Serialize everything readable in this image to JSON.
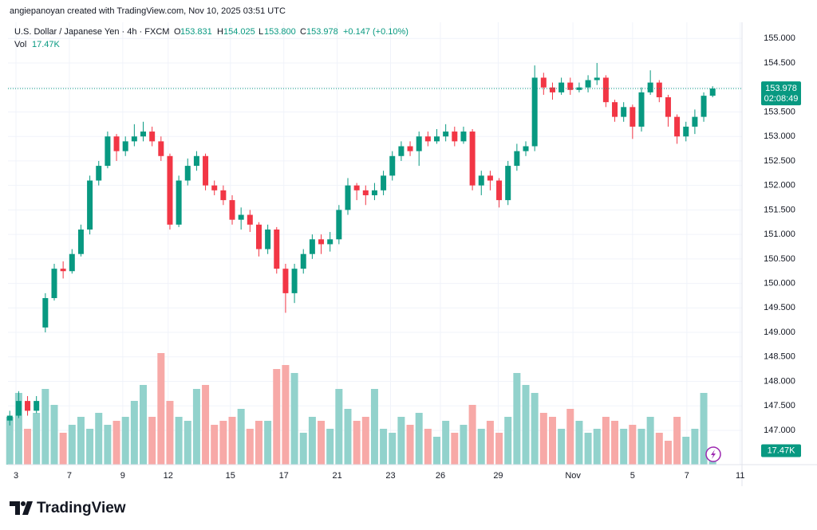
{
  "header": {
    "credit": "angiepanoyan created with TradingView.com, Nov 10, 2025 03:51 UTC"
  },
  "legend": {
    "symbol": "U.S. Dollar / Japanese Yen · 4h · FXCM",
    "o_key": "O",
    "o": "153.831",
    "h_key": "H",
    "h": "154.025",
    "l_key": "L",
    "l": "153.800",
    "c_key": "C",
    "c": "153.978",
    "change": "+0.147 (+0.10%)",
    "vol_key": "Vol",
    "vol": "17.47K"
  },
  "markers": {
    "last_price": "153.978",
    "countdown": "02:08:49",
    "last_volume": "17.47K"
  },
  "footer": {
    "brand": "TradingView"
  },
  "chart_data": {
    "type": "candlestick",
    "up_color": "#089981",
    "down_color": "#f23645",
    "up_volume_color": "#92d2cc",
    "down_volume_color": "#f7a9a7",
    "grid": true,
    "xlim": [
      -0.2,
      82.3
    ],
    "xticks": [
      {
        "value": 0.7,
        "label": "3"
      },
      {
        "value": 6.7,
        "label": "7"
      },
      {
        "value": 12.7,
        "label": "9"
      },
      {
        "value": 17.8,
        "label": "12"
      },
      {
        "value": 24.8,
        "label": "15"
      },
      {
        "value": 30.8,
        "label": "17"
      },
      {
        "value": 36.8,
        "label": "21"
      },
      {
        "value": 42.8,
        "label": "23"
      },
      {
        "value": 48.4,
        "label": "26"
      },
      {
        "value": 54.9,
        "label": "29"
      },
      {
        "value": 63.3,
        "label": "Nov"
      },
      {
        "value": 70,
        "label": "5"
      },
      {
        "value": 76.1,
        "label": "7"
      },
      {
        "value": 82.1,
        "label": "11"
      }
    ],
    "ylim": [
      146.3,
      155.33
    ],
    "yticks": [
      {
        "value": 147,
        "label": "147.000"
      },
      {
        "value": 147.5,
        "label": "147.500"
      },
      {
        "value": 148,
        "label": "148.000"
      },
      {
        "value": 148.5,
        "label": "148.500"
      },
      {
        "value": 149,
        "label": "149.000"
      },
      {
        "value": 149.5,
        "label": "149.500"
      },
      {
        "value": 150,
        "label": "150.000"
      },
      {
        "value": 150.5,
        "label": "150.500"
      },
      {
        "value": 151,
        "label": "151.000"
      },
      {
        "value": 151.5,
        "label": "151.500"
      },
      {
        "value": 152,
        "label": "152.000"
      },
      {
        "value": 152.5,
        "label": "152.500"
      },
      {
        "value": 153,
        "label": "153.000"
      },
      {
        "value": 153.5,
        "label": "153.500"
      },
      {
        "value": 154,
        "label": "154.000"
      },
      {
        "value": 154.5,
        "label": "154.500"
      },
      {
        "value": 155,
        "label": "155.000"
      }
    ],
    "volume_ylim": [
      0,
      150
    ],
    "open": [
      147.2,
      147.3,
      147.6,
      147.4,
      149.1,
      149.7,
      150.3,
      150.25,
      150.6,
      151.1,
      152.1,
      152.4,
      153,
      152.7,
      152.9,
      153,
      153.1,
      152.9,
      152.6,
      151.2,
      152.1,
      152.4,
      152.6,
      152,
      151.9,
      151.7,
      151.3,
      151.4,
      151.2,
      150.7,
      151.1,
      150.3,
      149.8,
      150.3,
      150.6,
      150.9,
      150.8,
      150.9,
      151.5,
      152,
      151.9,
      151.8,
      151.9,
      152.2,
      152.6,
      152.8,
      152.7,
      153,
      152.9,
      153,
      153.1,
      152.9,
      153.1,
      152,
      152.2,
      152.1,
      151.7,
      152.4,
      152.7,
      152.8,
      154.2,
      154,
      153.9,
      154.1,
      153.95,
      154,
      154.15,
      154.2,
      153.7,
      153.4,
      153.6,
      153.2,
      153.9,
      154.1,
      153.8,
      153.4,
      153,
      153.2,
      153.4,
      153.831
    ],
    "high": [
      147.4,
      147.8,
      147.7,
      147.7,
      149.8,
      150.4,
      150.45,
      150.7,
      151.2,
      152.2,
      152.5,
      153.1,
      153.05,
      153,
      153.25,
      153.3,
      153.2,
      153,
      152.65,
      152.2,
      152.55,
      152.7,
      152.65,
      152.1,
      152,
      151.8,
      151.55,
      151.5,
      151.25,
      151.2,
      151.15,
      150.4,
      150.4,
      150.7,
      151,
      151,
      151.05,
      151.6,
      152.15,
      152.05,
      152,
      152.05,
      152.3,
      152.7,
      152.9,
      152.9,
      153.1,
      153.1,
      153.15,
      153.25,
      153.2,
      153.2,
      153.15,
      152.3,
      152.3,
      152.15,
      152.5,
      152.85,
      152.9,
      154.45,
      154.3,
      154.1,
      154.2,
      154.2,
      154.1,
      154.25,
      154.5,
      154.25,
      153.75,
      153.7,
      153.65,
      154,
      154.35,
      154.15,
      153.85,
      153.45,
      153.3,
      153.55,
      153.9,
      154.025
    ],
    "low": [
      147.1,
      147.25,
      147.3,
      147.35,
      149,
      149.65,
      150.1,
      150.2,
      150.55,
      151,
      152,
      152.35,
      152.5,
      152.6,
      152.8,
      152.9,
      152.8,
      152.5,
      151.1,
      151.15,
      152,
      152.3,
      151.9,
      151.8,
      151.6,
      151.2,
      151.1,
      151.05,
      150.55,
      150.6,
      150.2,
      149.4,
      149.6,
      150.2,
      150.5,
      150.6,
      150.65,
      150.8,
      151.4,
      151.7,
      151.6,
      151.7,
      151.8,
      152.1,
      152.5,
      152.6,
      152.4,
      152.8,
      152.85,
      152.9,
      152.8,
      152.85,
      151.9,
      151.8,
      151.9,
      151.55,
      151.6,
      152.3,
      152.6,
      152.7,
      153.85,
      153.75,
      153.85,
      153.85,
      153.9,
      153.9,
      154.05,
      153.6,
      153.3,
      153.3,
      152.95,
      153.1,
      153.85,
      153.7,
      153.2,
      152.85,
      152.9,
      153.05,
      153.3,
      153.8
    ],
    "close": [
      147.3,
      147.6,
      147.4,
      147.6,
      149.7,
      150.3,
      150.25,
      150.6,
      151.1,
      152.1,
      152.4,
      153,
      152.7,
      152.9,
      153,
      153.1,
      152.9,
      152.6,
      151.2,
      152.1,
      152.4,
      152.6,
      152,
      151.9,
      151.7,
      151.3,
      151.4,
      151.2,
      150.7,
      151.1,
      150.3,
      149.8,
      150.3,
      150.6,
      150.9,
      150.8,
      150.9,
      151.5,
      152,
      151.9,
      151.8,
      151.9,
      152.2,
      152.6,
      152.8,
      152.7,
      153,
      152.9,
      153,
      153.1,
      152.9,
      153.1,
      152,
      152.2,
      152.1,
      151.7,
      152.4,
      152.7,
      152.8,
      154.2,
      154,
      153.9,
      154.1,
      153.95,
      154,
      154.15,
      154.2,
      153.7,
      153.4,
      153.6,
      153.2,
      153.9,
      154.1,
      153.8,
      153.4,
      153,
      153.2,
      153.4,
      153.831,
      153.978
    ],
    "volume": [
      60,
      90,
      45,
      65,
      95,
      75,
      40,
      50,
      60,
      45,
      65,
      50,
      55,
      60,
      80,
      100,
      60,
      140,
      80,
      60,
      55,
      95,
      100,
      50,
      55,
      60,
      70,
      45,
      55,
      55,
      120,
      125,
      115,
      40,
      60,
      55,
      45,
      95,
      70,
      55,
      60,
      95,
      45,
      40,
      60,
      50,
      65,
      45,
      35,
      55,
      40,
      50,
      75,
      45,
      55,
      40,
      60,
      115,
      100,
      90,
      65,
      60,
      45,
      70,
      55,
      40,
      45,
      60,
      55,
      45,
      50,
      45,
      60,
      40,
      30,
      60,
      35,
      45,
      90,
      17.47
    ]
  }
}
